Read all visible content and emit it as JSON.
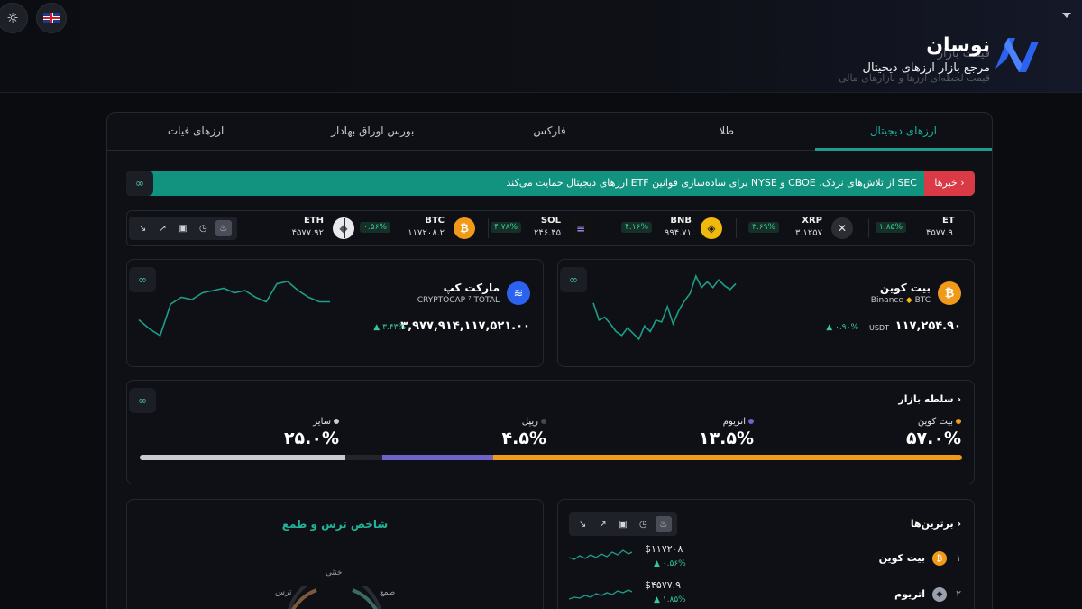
{
  "header": {
    "brand_name": "نوسان",
    "brand_ghost": "قیمت بازار",
    "brand_tagline": "مرجع بازار ارزهای دیجیتال",
    "brand_ghost2": "قیمت لحظه‌ای ارزها و بازارهای مالی",
    "theme_icon": "sun-icon",
    "language_icon": "uk-flag-icon"
  },
  "tabs": [
    {
      "label": "ارزهای دیجیتال",
      "active": true
    },
    {
      "label": "طلا"
    },
    {
      "label": "فارکس"
    },
    {
      "label": "بورس اوراق بهادار"
    },
    {
      "label": "ارزهای فیات"
    }
  ],
  "news": {
    "tag": "خبرها",
    "text": "SEC از تلاش‌های نزدک، CBOE و NYSE برای ساده‌سازی قوانین ETF ارزهای دیجیتال حمایت می‌کند"
  },
  "ticker": [
    {
      "symbol": "ETH",
      "price": "۴۵۷۷.۹۲",
      "color": "#9aa0ad",
      "glyph": "◆"
    },
    {
      "symbol": "BTC",
      "price": "۱۱۷۲۰۸.۲",
      "pct": "۰.۵۶%",
      "color": "#f19a1a",
      "glyph": "₿"
    },
    {
      "symbol": "SOL",
      "price": "۲۴۶.۴۵",
      "pct": "۴.۷۸%",
      "color": "#8b5cf6",
      "glyph": "≡"
    },
    {
      "symbol": "BNB",
      "price": "۹۹۴.۷۱",
      "pct": "۴.۱۶%",
      "color": "#f0b90b",
      "glyph": "◈"
    },
    {
      "symbol": "XRP",
      "price": "۳.۱۲۵۷",
      "pct": "۳.۶۹%",
      "color": "#2b2d33",
      "glyph": "✕"
    },
    {
      "symbol": "ET",
      "price": "۴۵۷۷.۹",
      "pct": "۱.۸۵%",
      "color": "#9aa0ad",
      "glyph": ""
    }
  ],
  "cards": {
    "bitcoin": {
      "name": "بیت کوین",
      "exchange": "Binance",
      "pair": "BTC",
      "price": "۱۱۷,۲۵۴.۹۰",
      "unit": "USDT",
      "pct": "۰.۹۰%",
      "sparkline": [
        40,
        58,
        55,
        62,
        70,
        74,
        66,
        72,
        78,
        64,
        70,
        58,
        60,
        44,
        62,
        48,
        38,
        30,
        12,
        24,
        18,
        24,
        16,
        22,
        26,
        20
      ]
    },
    "marketcap": {
      "name": "مارکت کپ",
      "source": "CRYPTOCAP",
      "index": "TOTAL",
      "price": "۳,۹۷۷,۹۱۴,۱۱۷,۵۲۱.۰۰",
      "pct": "۳.۴۳%",
      "sparkline": [
        62,
        70,
        76,
        48,
        42,
        44,
        38,
        36,
        34,
        38,
        36,
        42,
        46,
        30,
        28,
        36,
        42,
        46,
        46
      ]
    }
  },
  "dominance": {
    "title": "سلطه بازار",
    "items": [
      {
        "label": "بیت کوین",
        "value": "۵۷.۰%",
        "share": 57.0,
        "color": "#f19a1a"
      },
      {
        "label": "اتریوم",
        "value": "۱۳.۵%",
        "share": 13.5,
        "color": "#6e64c8"
      },
      {
        "label": "ریپل",
        "value": "۴.۵%",
        "share": 4.5,
        "color": "#23252c"
      },
      {
        "label": "سایر",
        "value": "۲۵.۰%",
        "share": 25.0,
        "color": "#c9cbd0"
      }
    ]
  },
  "top": {
    "title": "برترین‌ها",
    "rows": [
      {
        "rank": "۱",
        "name": "بیت کوین",
        "price": "$۱۱۷۲۰۸",
        "pct": "۰.۵۶%",
        "color": "#f19a1a",
        "glyph": "₿"
      },
      {
        "rank": "۲",
        "name": "اتریوم",
        "price": "$۴۵۷۷.۹",
        "pct": "۱.۸۵%",
        "color": "#9aa0ad",
        "glyph": "◆"
      }
    ]
  },
  "fear_greed": {
    "title": "شاخص ترس و طمع",
    "labels": [
      "خنثی",
      "طمع",
      "ترس"
    ]
  },
  "colors": {
    "accent": "#1e9e8a",
    "danger": "#d93a45",
    "positive": "#36c79a"
  }
}
